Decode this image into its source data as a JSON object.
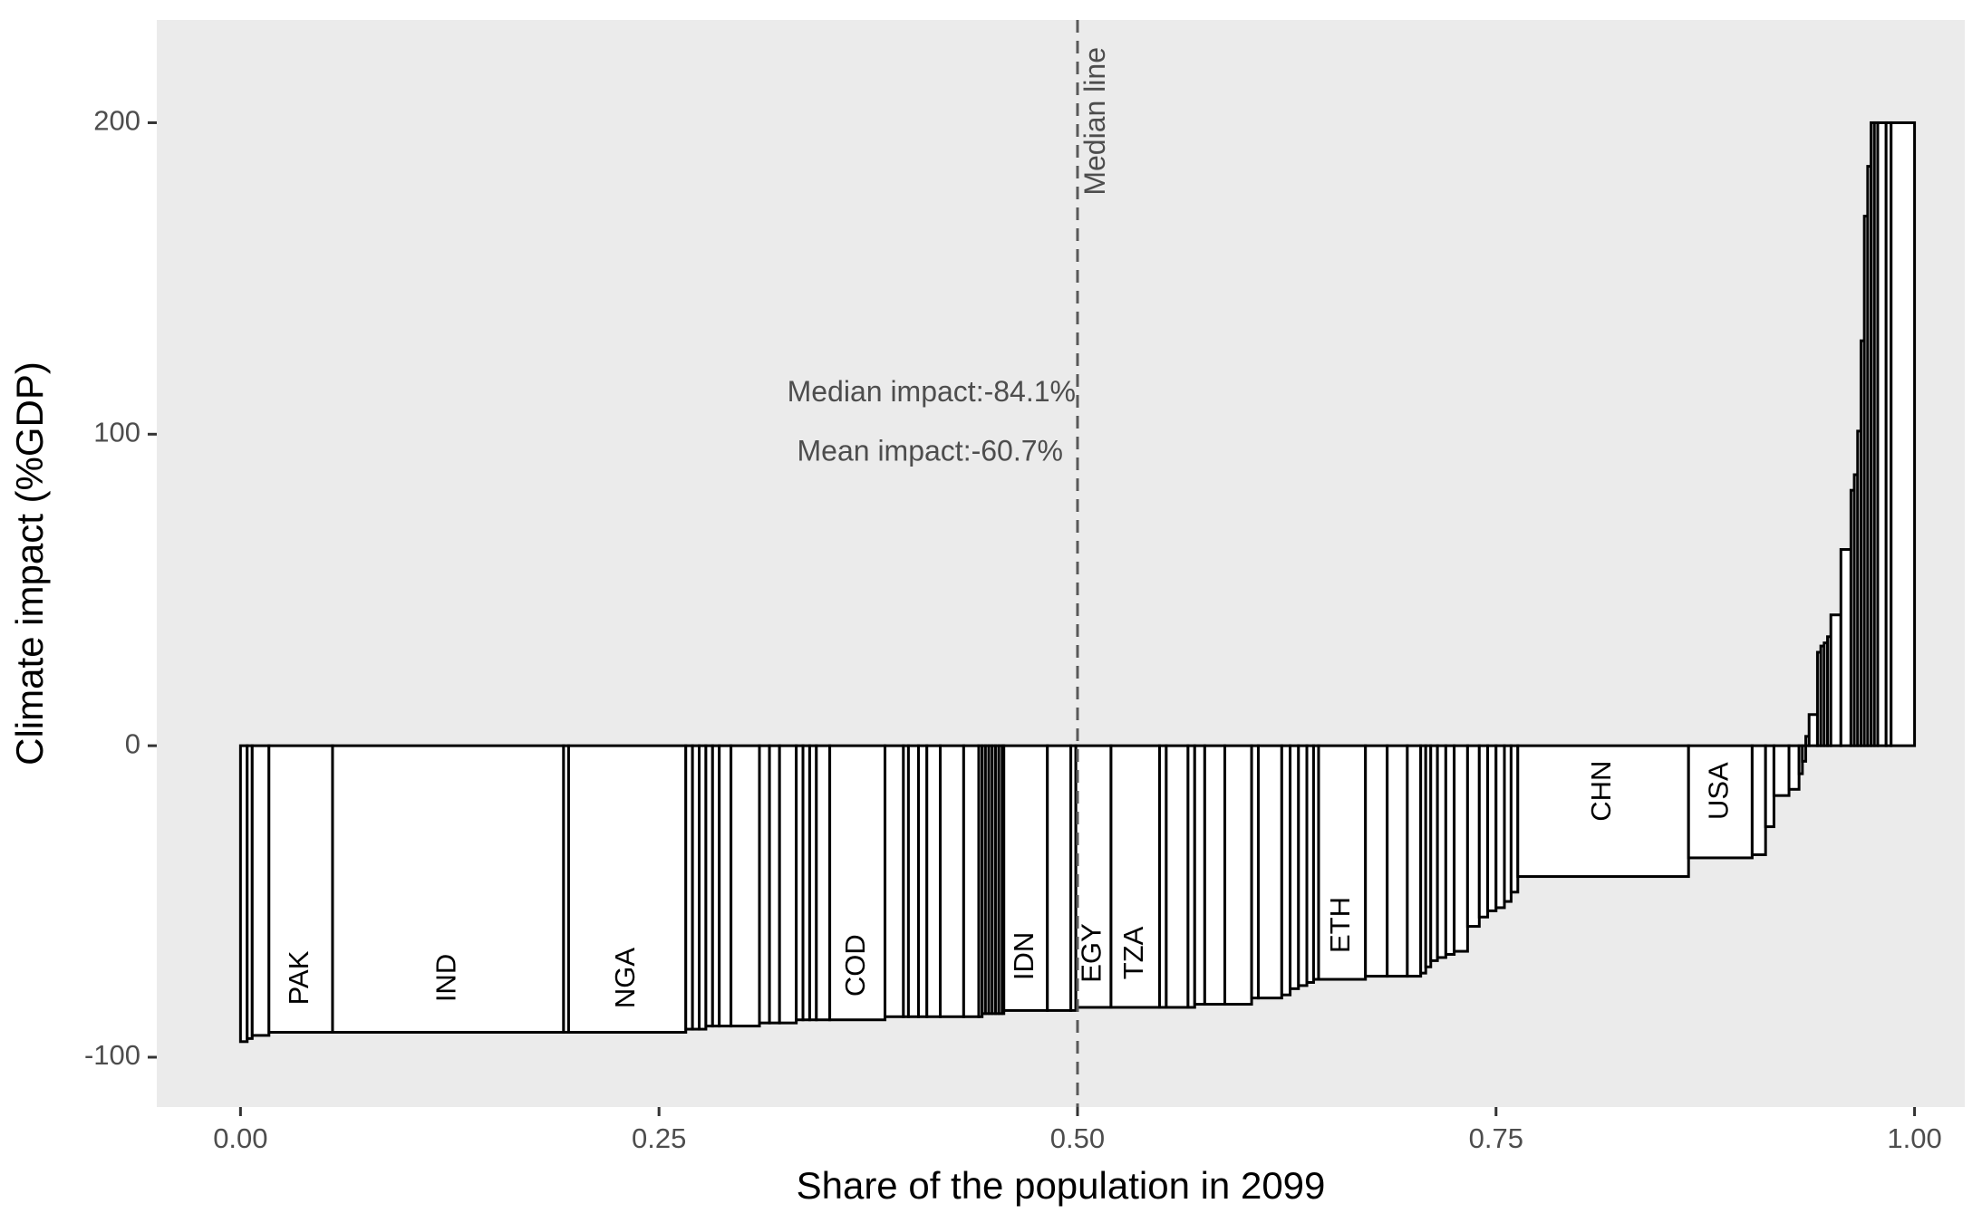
{
  "chart_data": {
    "type": "bar",
    "subtype": "variable-width bar chart (bar width = population share)",
    "xlabel": "Share of the population in 2099",
    "ylabel": "Climate impact (%GDP)",
    "xlim": [
      -0.05,
      1.03
    ],
    "ylim": [
      -116,
      233
    ],
    "x_ticks": [
      0,
      0.25,
      0.5,
      0.75,
      1.0
    ],
    "x_tick_labels": [
      "0.00",
      "0.25",
      "0.50",
      "0.75",
      "1.00"
    ],
    "y_ticks": [
      -100,
      0,
      100,
      200
    ],
    "y_tick_labels": [
      "-100",
      "0",
      "100",
      "200"
    ],
    "grid": false,
    "panel_background": "#ebebeb",
    "bar_fill": "#ffffff",
    "bar_outline": "#000000",
    "median_line": {
      "x": 0.5,
      "label": "Median line",
      "color": "#595959",
      "style": "dashed"
    },
    "annotations": [
      {
        "text": "Median impact:-84.1%",
        "x": 0.5,
        "y": 113
      },
      {
        "text": "Mean impact:-60.7%",
        "x": 0.5,
        "y": 94
      }
    ],
    "bars": [
      {
        "x0": 0.0,
        "x1": 0.004,
        "value": -95,
        "label": ""
      },
      {
        "x0": 0.004,
        "x1": 0.007,
        "value": -94,
        "label": ""
      },
      {
        "x0": 0.007,
        "x1": 0.017,
        "value": -93,
        "label": ""
      },
      {
        "x0": 0.017,
        "x1": 0.055,
        "value": -92,
        "label": "PAK"
      },
      {
        "x0": 0.055,
        "x1": 0.193,
        "value": -92,
        "label": "IND"
      },
      {
        "x0": 0.193,
        "x1": 0.196,
        "value": -92,
        "label": ""
      },
      {
        "x0": 0.196,
        "x1": 0.266,
        "value": -92,
        "label": "NGA"
      },
      {
        "x0": 0.266,
        "x1": 0.27,
        "value": -91,
        "label": ""
      },
      {
        "x0": 0.27,
        "x1": 0.274,
        "value": -91,
        "label": ""
      },
      {
        "x0": 0.274,
        "x1": 0.278,
        "value": -91,
        "label": ""
      },
      {
        "x0": 0.278,
        "x1": 0.282,
        "value": -90,
        "label": ""
      },
      {
        "x0": 0.282,
        "x1": 0.286,
        "value": -90,
        "label": ""
      },
      {
        "x0": 0.286,
        "x1": 0.293,
        "value": -90,
        "label": ""
      },
      {
        "x0": 0.293,
        "x1": 0.31,
        "value": -90,
        "label": ""
      },
      {
        "x0": 0.31,
        "x1": 0.316,
        "value": -89,
        "label": ""
      },
      {
        "x0": 0.316,
        "x1": 0.322,
        "value": -89,
        "label": ""
      },
      {
        "x0": 0.322,
        "x1": 0.332,
        "value": -89,
        "label": ""
      },
      {
        "x0": 0.332,
        "x1": 0.336,
        "value": -88,
        "label": ""
      },
      {
        "x0": 0.336,
        "x1": 0.34,
        "value": -88,
        "label": ""
      },
      {
        "x0": 0.34,
        "x1": 0.344,
        "value": -88,
        "label": ""
      },
      {
        "x0": 0.344,
        "x1": 0.352,
        "value": -88,
        "label": ""
      },
      {
        "x0": 0.352,
        "x1": 0.385,
        "value": -88,
        "label": "COD"
      },
      {
        "x0": 0.385,
        "x1": 0.396,
        "value": -87,
        "label": ""
      },
      {
        "x0": 0.396,
        "x1": 0.399,
        "value": -87,
        "label": ""
      },
      {
        "x0": 0.399,
        "x1": 0.405,
        "value": -87,
        "label": ""
      },
      {
        "x0": 0.405,
        "x1": 0.41,
        "value": -87,
        "label": ""
      },
      {
        "x0": 0.41,
        "x1": 0.418,
        "value": -87,
        "label": ""
      },
      {
        "x0": 0.418,
        "x1": 0.432,
        "value": -87,
        "label": ""
      },
      {
        "x0": 0.432,
        "x1": 0.441,
        "value": -87,
        "label": ""
      },
      {
        "x0": 0.441,
        "x1": 0.443,
        "value": -87,
        "label": ""
      },
      {
        "x0": 0.443,
        "x1": 0.445,
        "value": -86,
        "label": ""
      },
      {
        "x0": 0.445,
        "x1": 0.447,
        "value": -86,
        "label": ""
      },
      {
        "x0": 0.447,
        "x1": 0.449,
        "value": -86,
        "label": ""
      },
      {
        "x0": 0.449,
        "x1": 0.451,
        "value": -86,
        "label": ""
      },
      {
        "x0": 0.451,
        "x1": 0.453,
        "value": -86,
        "label": ""
      },
      {
        "x0": 0.453,
        "x1": 0.455,
        "value": -86,
        "label": ""
      },
      {
        "x0": 0.455,
        "x1": 0.456,
        "value": -86,
        "label": ""
      },
      {
        "x0": 0.456,
        "x1": 0.482,
        "value": -85,
        "label": "IDN"
      },
      {
        "x0": 0.482,
        "x1": 0.496,
        "value": -85,
        "label": ""
      },
      {
        "x0": 0.496,
        "x1": 0.499,
        "value": -85,
        "label": ""
      },
      {
        "x0": 0.499,
        "x1": 0.52,
        "value": -84,
        "label": "EGY"
      },
      {
        "x0": 0.52,
        "x1": 0.549,
        "value": -84,
        "label": "TZA"
      },
      {
        "x0": 0.549,
        "x1": 0.553,
        "value": -84,
        "label": ""
      },
      {
        "x0": 0.553,
        "x1": 0.566,
        "value": -84,
        "label": ""
      },
      {
        "x0": 0.566,
        "x1": 0.57,
        "value": -84,
        "label": ""
      },
      {
        "x0": 0.57,
        "x1": 0.576,
        "value": -83,
        "label": ""
      },
      {
        "x0": 0.576,
        "x1": 0.588,
        "value": -83,
        "label": ""
      },
      {
        "x0": 0.588,
        "x1": 0.604,
        "value": -83,
        "label": ""
      },
      {
        "x0": 0.604,
        "x1": 0.608,
        "value": -81,
        "label": ""
      },
      {
        "x0": 0.608,
        "x1": 0.622,
        "value": -81,
        "label": ""
      },
      {
        "x0": 0.622,
        "x1": 0.627,
        "value": -80,
        "label": ""
      },
      {
        "x0": 0.627,
        "x1": 0.632,
        "value": -78,
        "label": ""
      },
      {
        "x0": 0.632,
        "x1": 0.637,
        "value": -77,
        "label": ""
      },
      {
        "x0": 0.637,
        "x1": 0.641,
        "value": -76,
        "label": ""
      },
      {
        "x0": 0.641,
        "x1": 0.644,
        "value": -75,
        "label": ""
      },
      {
        "x0": 0.644,
        "x1": 0.672,
        "value": -75,
        "label": "ETH"
      },
      {
        "x0": 0.672,
        "x1": 0.685,
        "value": -74,
        "label": ""
      },
      {
        "x0": 0.685,
        "x1": 0.697,
        "value": -74,
        "label": ""
      },
      {
        "x0": 0.697,
        "x1": 0.705,
        "value": -74,
        "label": ""
      },
      {
        "x0": 0.705,
        "x1": 0.708,
        "value": -73,
        "label": ""
      },
      {
        "x0": 0.708,
        "x1": 0.711,
        "value": -71,
        "label": ""
      },
      {
        "x0": 0.711,
        "x1": 0.715,
        "value": -69,
        "label": ""
      },
      {
        "x0": 0.715,
        "x1": 0.72,
        "value": -68,
        "label": ""
      },
      {
        "x0": 0.72,
        "x1": 0.725,
        "value": -67,
        "label": ""
      },
      {
        "x0": 0.725,
        "x1": 0.733,
        "value": -66,
        "label": ""
      },
      {
        "x0": 0.733,
        "x1": 0.74,
        "value": -58,
        "label": ""
      },
      {
        "x0": 0.74,
        "x1": 0.745,
        "value": -55,
        "label": ""
      },
      {
        "x0": 0.745,
        "x1": 0.75,
        "value": -53,
        "label": ""
      },
      {
        "x0": 0.75,
        "x1": 0.755,
        "value": -52,
        "label": ""
      },
      {
        "x0": 0.755,
        "x1": 0.759,
        "value": -50,
        "label": ""
      },
      {
        "x0": 0.759,
        "x1": 0.763,
        "value": -47,
        "label": ""
      },
      {
        "x0": 0.763,
        "x1": 0.865,
        "value": -42,
        "label": "CHN"
      },
      {
        "x0": 0.865,
        "x1": 0.903,
        "value": -36,
        "label": "USA"
      },
      {
        "x0": 0.903,
        "x1": 0.911,
        "value": -35,
        "label": ""
      },
      {
        "x0": 0.911,
        "x1": 0.916,
        "value": -26,
        "label": ""
      },
      {
        "x0": 0.916,
        "x1": 0.925,
        "value": -16,
        "label": ""
      },
      {
        "x0": 0.925,
        "x1": 0.931,
        "value": -14,
        "label": ""
      },
      {
        "x0": 0.931,
        "x1": 0.933,
        "value": -9,
        "label": ""
      },
      {
        "x0": 0.933,
        "x1": 0.935,
        "value": -5,
        "label": ""
      },
      {
        "x0": 0.935,
        "x1": 0.937,
        "value": 3,
        "label": ""
      },
      {
        "x0": 0.937,
        "x1": 0.942,
        "value": 10,
        "label": ""
      },
      {
        "x0": 0.942,
        "x1": 0.944,
        "value": 30,
        "label": ""
      },
      {
        "x0": 0.944,
        "x1": 0.946,
        "value": 32,
        "label": ""
      },
      {
        "x0": 0.946,
        "x1": 0.948,
        "value": 33,
        "label": ""
      },
      {
        "x0": 0.948,
        "x1": 0.95,
        "value": 35,
        "label": ""
      },
      {
        "x0": 0.95,
        "x1": 0.956,
        "value": 42,
        "label": ""
      },
      {
        "x0": 0.956,
        "x1": 0.962,
        "value": 63,
        "label": ""
      },
      {
        "x0": 0.962,
        "x1": 0.964,
        "value": 82,
        "label": ""
      },
      {
        "x0": 0.964,
        "x1": 0.966,
        "value": 87,
        "label": ""
      },
      {
        "x0": 0.966,
        "x1": 0.968,
        "value": 101,
        "label": ""
      },
      {
        "x0": 0.968,
        "x1": 0.97,
        "value": 130,
        "label": ""
      },
      {
        "x0": 0.97,
        "x1": 0.972,
        "value": 170,
        "label": ""
      },
      {
        "x0": 0.972,
        "x1": 0.974,
        "value": 186,
        "label": ""
      },
      {
        "x0": 0.974,
        "x1": 0.976,
        "value": 200,
        "label": ""
      },
      {
        "x0": 0.976,
        "x1": 0.978,
        "value": 200,
        "label": ""
      },
      {
        "x0": 0.978,
        "x1": 0.983,
        "value": 200,
        "label": ""
      },
      {
        "x0": 0.983,
        "x1": 0.986,
        "value": 200,
        "label": ""
      },
      {
        "x0": 0.986,
        "x1": 1.0,
        "value": 200,
        "label": ""
      }
    ]
  }
}
